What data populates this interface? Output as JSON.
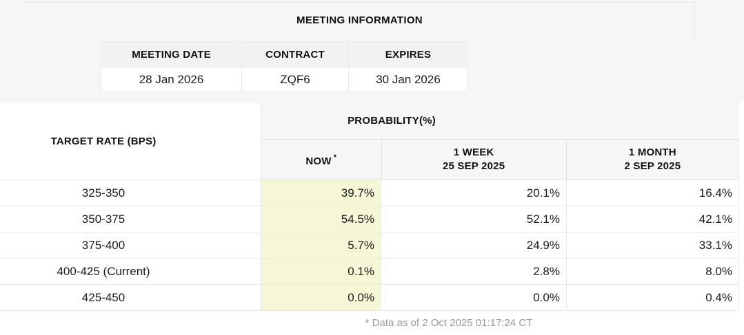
{
  "meeting_info": {
    "title": "MEETING INFORMATION",
    "columns": [
      "MEETING DATE",
      "CONTRACT",
      "EXPIRES"
    ],
    "values": [
      "28 Jan 2026",
      "ZQF6",
      "30 Jan 2026"
    ]
  },
  "probability_table": {
    "left_header": "TARGET RATE (BPS)",
    "group_header": "PROBABILITY(%)",
    "columns": {
      "now_label": "NOW",
      "now_asterisk": "*",
      "week_label": "1 WEEK",
      "week_date": "25 SEP 2025",
      "month_label": "1 MONTH",
      "month_date": "2 SEP 2025"
    },
    "rows": [
      {
        "label": "325-350",
        "now": "39.7%",
        "week": "20.1%",
        "month": "16.4%"
      },
      {
        "label": "350-375",
        "now": "54.5%",
        "week": "52.1%",
        "month": "42.1%"
      },
      {
        "label": "375-400",
        "now": "5.7%",
        "week": "24.9%",
        "month": "33.1%"
      },
      {
        "label": "400-425 (Current)",
        "now": "0.1%",
        "week": "2.8%",
        "month": "8.0%"
      },
      {
        "label": "425-450",
        "now": "0.0%",
        "week": "0.0%",
        "month": "0.4%"
      }
    ]
  },
  "footer": {
    "note": "* Data as of 2 Oct 2025 01:17:24 CT"
  },
  "colors": {
    "now_highlight": "#f5f7d6",
    "band_gray": "#f6f6f7",
    "header_cell_gray": "#f2f2f3",
    "border": "#e9e9ea",
    "footer_text": "#9b9b9b"
  }
}
